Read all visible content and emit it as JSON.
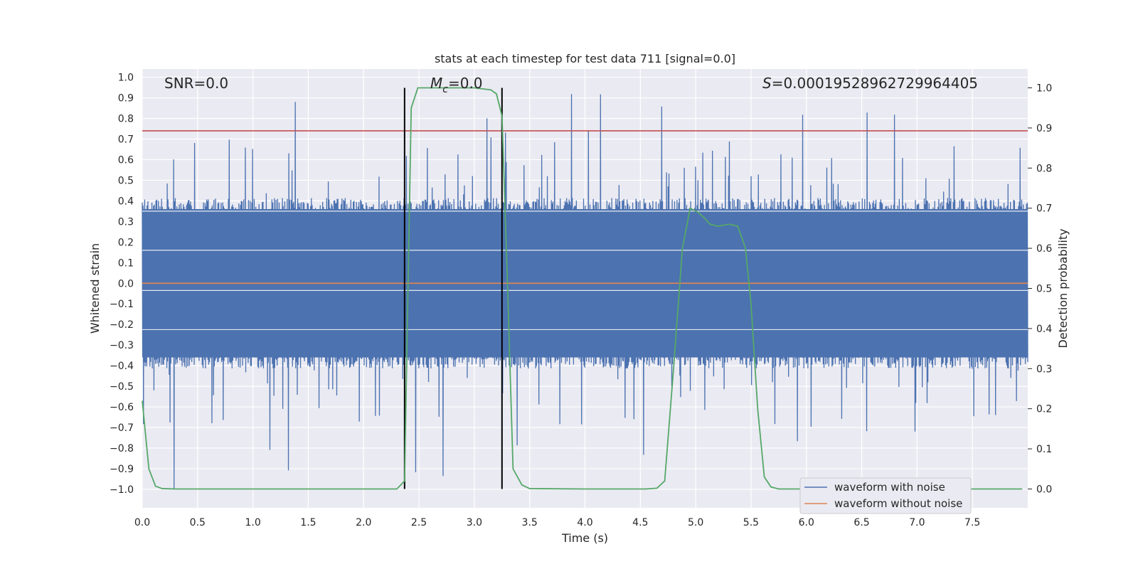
{
  "chart_data": {
    "type": "line",
    "title": "stats at each timestep for test data 711 [signal=0.0]",
    "xlabel": "Time (s)",
    "ylabel": "Whitened strain",
    "y2label": "Detection probability",
    "xlim": [
      0.0,
      8.0
    ],
    "ylim": [
      -1.09,
      1.04
    ],
    "y2lim": [
      -0.047,
      1.047
    ],
    "xticks": [
      0.0,
      0.5,
      1.0,
      1.5,
      2.0,
      2.5,
      3.0,
      3.5,
      4.0,
      4.5,
      5.0,
      5.5,
      6.0,
      6.5,
      7.0,
      7.5
    ],
    "xtick_labels": [
      "0.0",
      "0.5",
      "1.0",
      "1.5",
      "2.0",
      "2.5",
      "3.0",
      "3.5",
      "4.0",
      "4.5",
      "5.0",
      "5.5",
      "6.0",
      "6.5",
      "7.0",
      "7.5"
    ],
    "yticks": [
      1.0,
      0.9,
      0.8,
      0.7,
      0.6,
      0.5,
      0.4,
      0.3,
      0.2,
      0.1,
      0.0,
      -0.1,
      -0.2,
      -0.3,
      -0.4,
      -0.5,
      -0.6,
      -0.7,
      -0.8,
      -0.9,
      -1.0
    ],
    "ytick_labels": [
      "1.0",
      "0.9",
      "0.8",
      "0.7",
      "0.6",
      "0.5",
      "0.4",
      "0.3",
      "0.2",
      "0.1",
      "0.0",
      "−0.1",
      "−0.2",
      "−0.3",
      "−0.4",
      "−0.5",
      "−0.6",
      "−0.7",
      "−0.8",
      "−0.9",
      "−1.0"
    ],
    "y2ticks": [
      1.0,
      0.9,
      0.8,
      0.7,
      0.6,
      0.5,
      0.4,
      0.3,
      0.2,
      0.1,
      0.0
    ],
    "y2tick_labels": [
      "1.0",
      "0.9",
      "0.8",
      "0.7",
      "0.6",
      "0.5",
      "0.4",
      "0.3",
      "0.2",
      "0.1",
      "0.0"
    ],
    "grid": true,
    "legend_position": "bottom-right",
    "annotations": {
      "snr": "SNR=0.0",
      "mc_symbol": "M",
      "mc_subscript": "c",
      "mc_value": "=0.0",
      "s_symbol": "S",
      "s_value": "=0.0001952896272996440​5"
    },
    "threshold_line": {
      "y": 0.74,
      "color": "#c44e52"
    },
    "vertical_lines": {
      "x": [
        2.37,
        3.25
      ],
      "y2_range": [
        0.0,
        1.0
      ],
      "color": "#000000"
    },
    "noise_band": {
      "color": "#4c72b0",
      "core_positive": 0.36,
      "core_negative": -0.36,
      "typical_peak": 0.72,
      "max_peak": 0.93,
      "min_trough": -1.0
    },
    "series": [
      {
        "name": "waveform with noise",
        "axis": "left",
        "color": "#4c72b0",
        "summary": "whitened noise, values roughly between -1.0 and 0.93"
      },
      {
        "name": "waveform without noise",
        "axis": "left",
        "color": "#dd8452",
        "x": [
          0.0,
          8.0
        ],
        "y": [
          0.0,
          0.0
        ]
      },
      {
        "name": "detection probability",
        "axis": "right",
        "color": "#55a868",
        "x": [
          0.0,
          0.06,
          0.12,
          0.18,
          0.3,
          0.8,
          1.3,
          2.0,
          2.3,
          2.37,
          2.43,
          2.49,
          2.58,
          3.0,
          3.15,
          3.2,
          3.25,
          3.3,
          3.35,
          3.43,
          3.5,
          4.0,
          4.55,
          4.65,
          4.72,
          4.8,
          4.88,
          4.95,
          5.02,
          5.08,
          5.13,
          5.2,
          5.3,
          5.38,
          5.45,
          5.5,
          5.56,
          5.62,
          5.68,
          5.75,
          6.0,
          7.0,
          7.95
        ],
        "y": [
          0.22,
          0.05,
          0.007,
          0.001,
          0.0,
          0.0,
          0.0,
          0.0,
          0.0,
          0.02,
          0.95,
          1.0,
          1.0,
          1.0,
          0.995,
          0.985,
          0.93,
          0.51,
          0.05,
          0.01,
          0.001,
          0.0,
          0.0,
          0.002,
          0.02,
          0.3,
          0.6,
          0.7,
          0.69,
          0.675,
          0.66,
          0.655,
          0.66,
          0.655,
          0.6,
          0.46,
          0.2,
          0.03,
          0.005,
          0.0,
          0.0,
          0.0,
          0.0
        ]
      }
    ],
    "legend": [
      "waveform with noise",
      "waveform without noise"
    ]
  }
}
